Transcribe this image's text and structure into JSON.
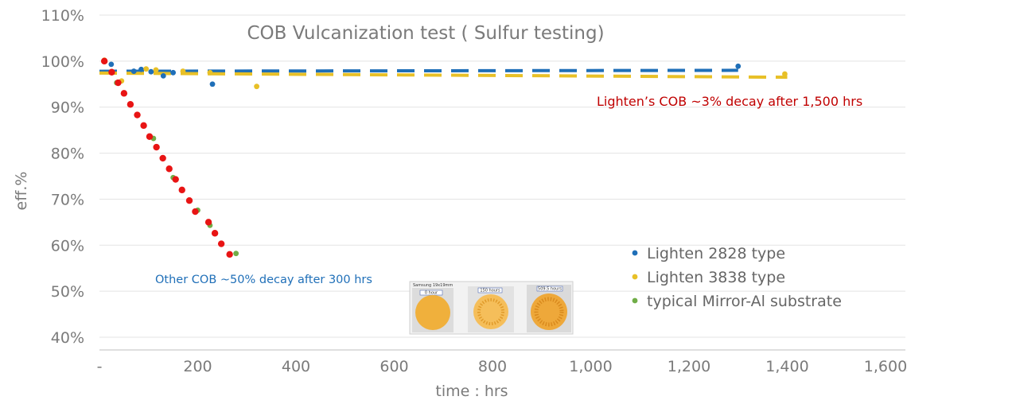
{
  "chart_data": {
    "type": "scatter",
    "title": "COB Vulcanization test ( Sulfur testing)",
    "xlabel": "time : hrs",
    "ylabel": "eff.%",
    "xlim": [
      0,
      1600
    ],
    "ylim": [
      40,
      110
    ],
    "x_ticks": [
      {
        "value": 0,
        "label": "-"
      },
      {
        "value": 200,
        "label": "200"
      },
      {
        "value": 400,
        "label": "400"
      },
      {
        "value": 600,
        "label": "600"
      },
      {
        "value": 800,
        "label": "800"
      },
      {
        "value": 1000,
        "label": "1,000"
      },
      {
        "value": 1200,
        "label": "1,200"
      },
      {
        "value": 1400,
        "label": "1,400"
      },
      {
        "value": 1600,
        "label": "1,600"
      }
    ],
    "y_ticks": [
      {
        "value": 40,
        "label": "40%"
      },
      {
        "value": 50,
        "label": "50%"
      },
      {
        "value": 60,
        "label": "60%"
      },
      {
        "value": 70,
        "label": "70%"
      },
      {
        "value": 80,
        "label": "80%"
      },
      {
        "value": 90,
        "label": "90%"
      },
      {
        "value": 100,
        "label": "100%"
      },
      {
        "value": 110,
        "label": "110%"
      }
    ],
    "grid": {
      "horizontal": true,
      "vertical": false
    },
    "legend_position": "bottom-right",
    "series": [
      {
        "name": "Lighten  2828 type",
        "color": "#1f6fb8",
        "points": [
          [
            10,
            100
          ],
          [
            24,
            99.3
          ],
          [
            70,
            97.8
          ],
          [
            85,
            98.2
          ],
          [
            105,
            97.7
          ],
          [
            130,
            96.8
          ],
          [
            150,
            97.5
          ],
          [
            230,
            95
          ],
          [
            1300,
            98.9
          ]
        ]
      },
      {
        "name": "Lighten 3838 type",
        "color": "#e8c027",
        "points": [
          [
            10,
            100.2
          ],
          [
            45,
            95.7
          ],
          [
            95,
            98.3
          ],
          [
            115,
            98.1
          ],
          [
            170,
            97.8
          ],
          [
            225,
            97.5
          ],
          [
            320,
            94.5
          ],
          [
            1395,
            97.2
          ]
        ]
      },
      {
        "name": "typical Mirror-Al substrate",
        "color": "#70ad47",
        "points": [
          [
            10,
            100.1
          ],
          [
            35,
            95.3
          ],
          [
            110,
            83.2
          ],
          [
            150,
            74.7
          ],
          [
            200,
            67.6
          ],
          [
            225,
            64.3
          ],
          [
            278,
            58.2
          ]
        ]
      },
      {
        "name": "",
        "color": "#e81414",
        "points": [
          [
            10,
            100
          ],
          [
            25,
            97.6
          ],
          [
            38,
            95.3
          ],
          [
            50,
            93
          ],
          [
            63,
            90.6
          ],
          [
            77,
            88.3
          ],
          [
            90,
            86
          ],
          [
            102,
            83.6
          ],
          [
            116,
            81.3
          ],
          [
            129,
            78.9
          ],
          [
            142,
            76.6
          ],
          [
            155,
            74.3
          ],
          [
            168,
            72
          ],
          [
            183,
            69.7
          ],
          [
            195,
            67.3
          ],
          [
            222,
            65
          ],
          [
            235,
            62.6
          ],
          [
            248,
            60.3
          ],
          [
            265,
            58
          ]
        ]
      }
    ],
    "trendlines": [
      {
        "series": "Lighten  2828 type",
        "color": "#1f6fb8",
        "x": [
          0,
          1300
        ],
        "y": [
          97.8,
          98.0
        ]
      },
      {
        "series": "Lighten 3838 type",
        "color": "#e8c027",
        "x": [
          0,
          1400
        ],
        "y": [
          97.4,
          96.5
        ]
      }
    ],
    "annotations": [
      {
        "text": "Lighten’s  COB ~3% decay after 1,500 hrs",
        "color": "#c00000"
      },
      {
        "text": "Other COB ~50% decay after 300 hrs",
        "color": "#1f6fb8"
      }
    ]
  },
  "inset": {
    "header": "Samsung 19x19mm",
    "labels": [
      "0 hour",
      "150 hours",
      "509.5 hours"
    ]
  }
}
